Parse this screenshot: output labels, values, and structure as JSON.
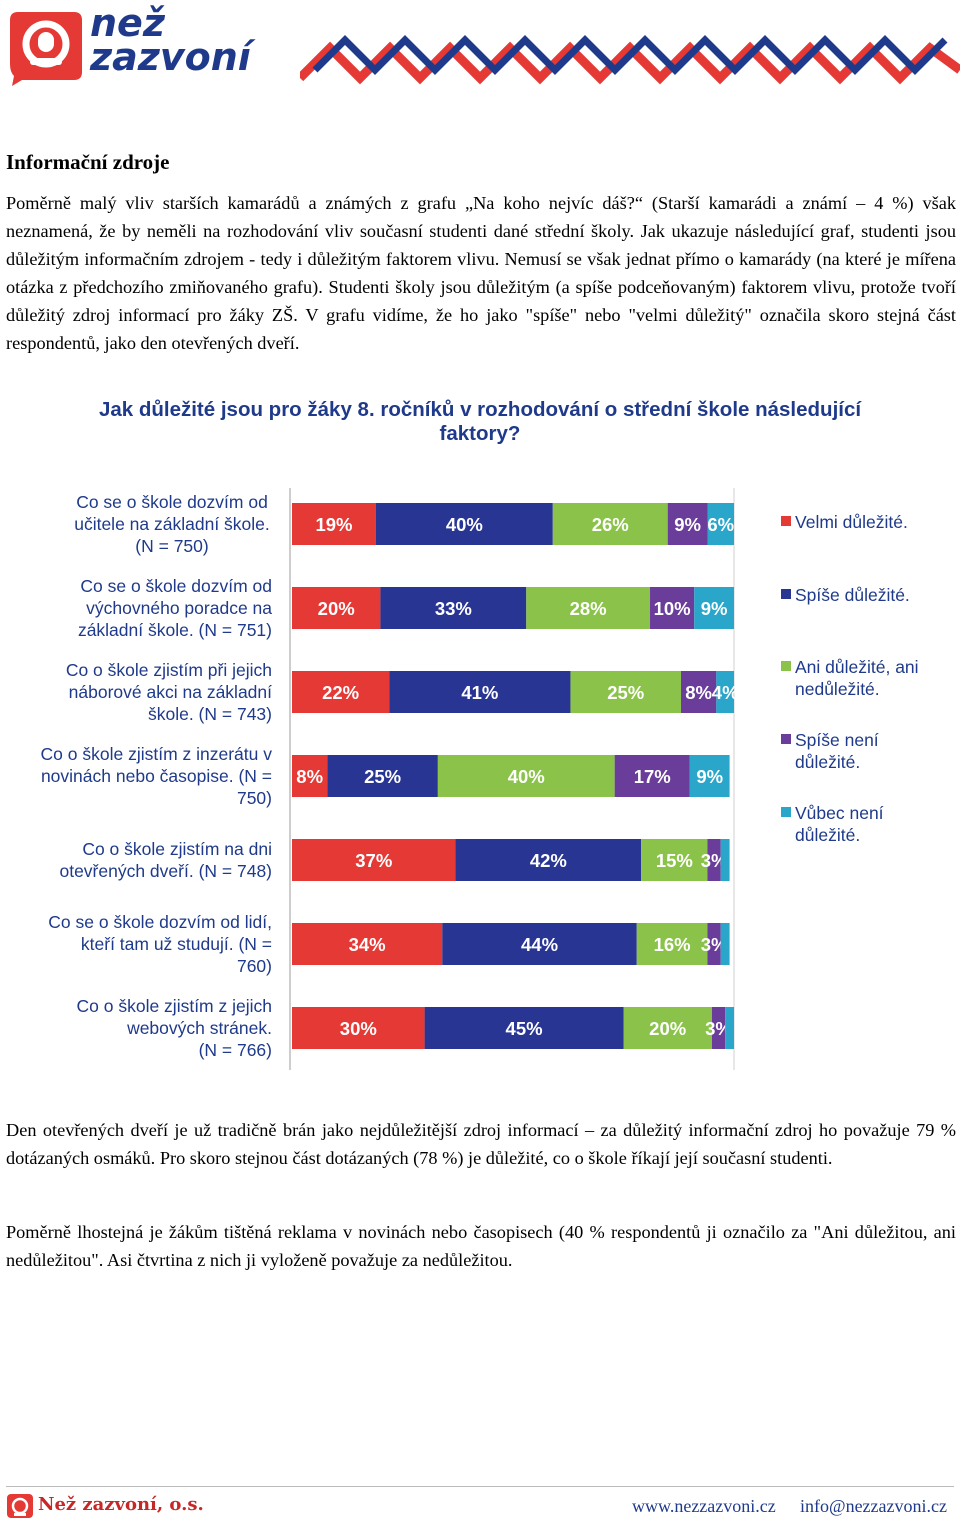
{
  "header": {
    "logo_line1": "než",
    "logo_line2": "zazvoní"
  },
  "section_title": "Informační zdroje",
  "paragraph_1": "Poměrně malý vliv starších kamarádů a známých z grafu „Na koho nejvíc dáš?“ (Starší kamarádi a známí – 4 %) však neznamená, že by neměli na rozhodování vliv současní studenti dané střední školy. Jak ukazuje následující graf, studenti jsou důležitým informačním zdrojem - tedy i důležitým faktorem vlivu. Nemusí se však jednat přímo o kamarády (na které je mířena otázka z předchozího zmiňovaného grafu). Studenti školy jsou důležitým (a spíše podceňovaným) faktorem vlivu, protože tvoří důležitý zdroj informací pro žáky ZŠ. V grafu vidíme, že ho jako \"spíše\" nebo \"velmi důležitý\" označila skoro stejná část respondentů, jako den otevřených dveří.",
  "paragraph_2": "Den otevřených dveří je už tradičně brán jako nejdůležitější zdroj informací – za důležitý informační zdroj ho považuje 79 % dotázaných osmáků. Pro skoro stejnou část dotázaných (78 %) je důležité, co o škole říkají její současní studenti.",
  "paragraph_3": "Poměrně lhostejná je žákům tištěná reklama v novinách nebo časopisech (40 % respondentů ji označilo za \"Ani důležitou, ani nedůležitou\". Asi čtvrtina z nich ji vyloženě považuje za nedůležitou.",
  "chart_data": {
    "type": "bar",
    "stacked": true,
    "orientation": "horizontal",
    "percent_scale": true,
    "title": "Jak důležité jsou pro žáky 8. ročníků v rozhodování o střední škole následující faktory?",
    "categories": [
      [
        "Co se o škole dozvím od",
        "učitele na základní škole.",
        "(N = 750)"
      ],
      [
        "Co se o škole dozvím od",
        "výchovného poradce na",
        "základní škole. (N = 751)"
      ],
      [
        "Co o škole zjistím při jejich",
        "náborové akci na základní",
        "škole. (N = 743)"
      ],
      [
        "Co o škole zjistím z inzerátu v",
        "novinách nebo časopise. (N =",
        "750)"
      ],
      [
        "Co o škole zjistím na dni",
        "otevřených dveří. (N = 748)"
      ],
      [
        "Co se o škole dozvím od lidí,",
        "kteří tam už studují.           (N =",
        "760)"
      ],
      [
        "Co o škole zjistím z jejich",
        "webových stránek.",
        "(N = 766)"
      ]
    ],
    "series": [
      {
        "name": "Velmi důležité.",
        "color": "#e53935",
        "values": [
          19,
          20,
          22,
          8,
          37,
          34,
          30
        ]
      },
      {
        "name": "Spíše důležité.",
        "color": "#283593",
        "values": [
          40,
          33,
          41,
          25,
          42,
          44,
          45
        ]
      },
      {
        "name": "Ani důležité, ani nedůležité.",
        "color": "#8bc34a",
        "values": [
          26,
          28,
          25,
          40,
          15,
          16,
          20
        ]
      },
      {
        "name": "Spíše není důležité.",
        "color": "#6a3d9a",
        "values": [
          9,
          10,
          8,
          17,
          3,
          3,
          3
        ]
      },
      {
        "name": "Vůbec není důležité.",
        "color": "#29a6c9",
        "values": [
          6,
          9,
          4,
          9,
          2,
          2,
          2
        ]
      }
    ],
    "data_labels": [
      [
        "19%",
        "40%",
        "26%",
        "9%",
        "6%"
      ],
      [
        "20%",
        "33%",
        "28%",
        "10%",
        "9%"
      ],
      [
        "22%",
        "41%",
        "25%",
        "8%",
        "4%"
      ],
      [
        "8%",
        "25%",
        "40%",
        "17%",
        "9%"
      ],
      [
        "37%",
        "42%",
        "15%",
        "3%",
        ""
      ],
      [
        "34%",
        "44%",
        "16%",
        "3%",
        ""
      ],
      [
        "30%",
        "45%",
        "20%",
        "3%",
        ""
      ]
    ],
    "legend_lines": [
      [
        "Velmi důležité."
      ],
      [
        "Spíše důležité."
      ],
      [
        "Ani důležité, ani",
        "nedůležité."
      ],
      [
        "Spíše není",
        "důležité."
      ],
      [
        "Vůbec není",
        "důležité."
      ]
    ],
    "legend_position": "right"
  },
  "footer": {
    "org": "Než zazvoní, o.s.",
    "web": "www.nezzazvoni.cz",
    "email": "info@nezzazvoni.cz"
  }
}
